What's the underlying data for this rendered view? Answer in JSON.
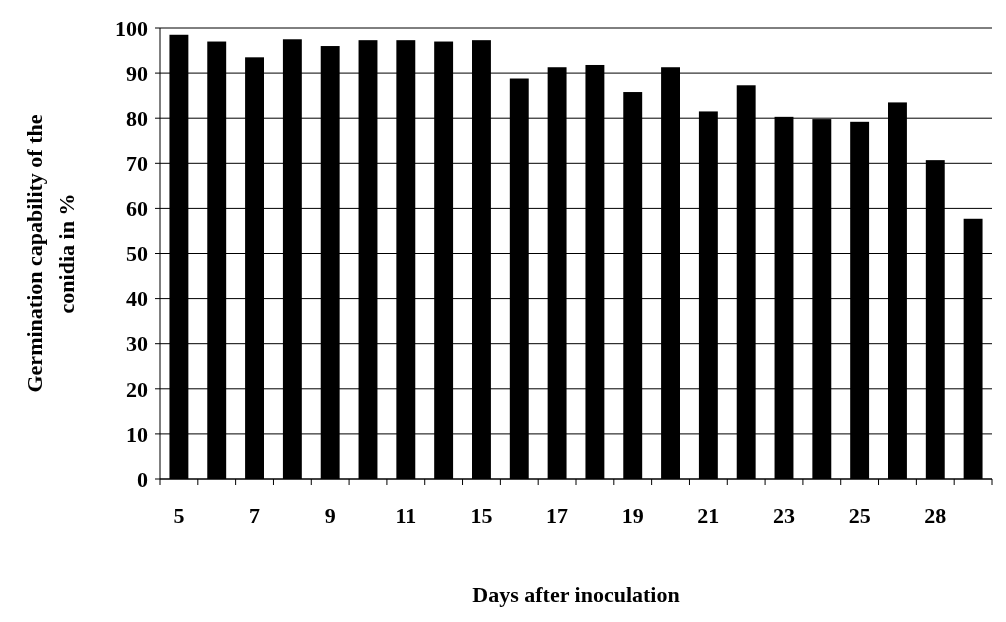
{
  "chart_data": {
    "type": "bar",
    "xlabel": "Days after inoculation",
    "ylabel": "Germination capability of the conidia in %",
    "categories": [
      "5",
      null,
      "7",
      null,
      "9",
      null,
      "11",
      null,
      "15",
      null,
      "17",
      null,
      "19",
      null,
      "21",
      null,
      "23",
      null,
      "25",
      null,
      "28",
      null
    ],
    "values": [
      98.5,
      97,
      93.5,
      97.5,
      96,
      97.3,
      97.3,
      97,
      97.3,
      88.8,
      91.3,
      91.8,
      85.8,
      91.3,
      81.5,
      87.3,
      80.3,
      79.8,
      79.2,
      83.5,
      70.7,
      57.7
    ],
    "color": "#000000",
    "ylim": [
      0,
      100
    ],
    "yticks": [
      0,
      10,
      20,
      30,
      40,
      50,
      60,
      70,
      80,
      90,
      100
    ],
    "grid": "y"
  }
}
